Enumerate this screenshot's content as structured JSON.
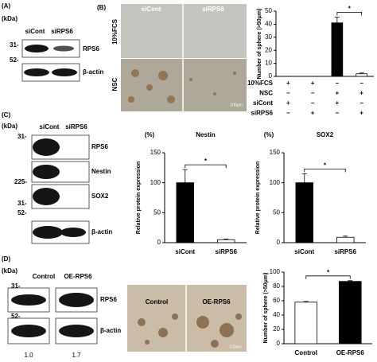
{
  "panels": {
    "A": {
      "letter": "(A)",
      "kda": "(kDa)",
      "lanes": [
        "siCont",
        "siRPS6"
      ],
      "markers": [
        "31-",
        "52-"
      ],
      "proteins": [
        "RPS6",
        "β-actin"
      ]
    },
    "B": {
      "letter": "(B)",
      "lanes": [
        "siCont",
        "siRPS6"
      ],
      "conditions": [
        "10%FCS",
        "NSC"
      ],
      "scale": "100μm"
    },
    "C": {
      "letter": "(C)",
      "kda": "(kDa)",
      "lanes": [
        "siCont",
        "siRPS6"
      ],
      "markers": [
        "31-",
        "225-",
        "31-",
        "52-"
      ],
      "proteins": [
        "RPS6",
        "Nestin",
        "SOX2",
        "β-actin"
      ]
    },
    "D": {
      "letter": "(D)",
      "kda": "(kDa)",
      "lanes": [
        "Control",
        "OE-RPS6"
      ],
      "markers": [
        "31-",
        "52-"
      ],
      "proteins": [
        "RPS6",
        "β-actin"
      ],
      "quantification": [
        "1.0",
        "1.7"
      ],
      "image_labels": [
        "Control",
        "OE-RPS6"
      ],
      "scale": "100μm"
    }
  },
  "chart_data": [
    {
      "type": "bar",
      "ylabel": "Number of sphere (>50μm)",
      "categories": [
        null,
        null,
        null,
        null
      ],
      "values": [
        0,
        0,
        41,
        2
      ],
      "errors": [
        0,
        0,
        4.5,
        0.6
      ],
      "colors": [
        "#ffffff",
        "#ffffff",
        "#000000",
        "#ffffff"
      ],
      "ylim": [
        0,
        50
      ],
      "yticks": [
        0,
        10,
        20,
        30,
        40,
        50
      ],
      "significance": "*",
      "conditions": [
        {
          "label": "10%FCS",
          "signs": [
            "+",
            "+",
            "−",
            "−"
          ]
        },
        {
          "label": "NSC",
          "signs": [
            "−",
            "−",
            "+",
            "+"
          ]
        },
        {
          "label": "siCont",
          "signs": [
            "+",
            "−",
            "+",
            "−"
          ]
        },
        {
          "label": "siRPS6",
          "signs": [
            "−",
            "+",
            "−",
            "+"
          ]
        }
      ]
    },
    {
      "type": "bar",
      "title": "Nestin",
      "unit": "(%)",
      "ylabel": "Relative protein expression",
      "categories": [
        "siCont",
        "siRPS6"
      ],
      "values": [
        100,
        5
      ],
      "errors": [
        22,
        1
      ],
      "colors": [
        "#000000",
        "#ffffff"
      ],
      "ylim": [
        0,
        150
      ],
      "yticks": [
        0,
        50,
        100,
        150
      ],
      "significance": "*"
    },
    {
      "type": "bar",
      "title": "SOX2",
      "unit": "(%)",
      "ylabel": "Relative protein expression",
      "categories": [
        "siCont",
        "siRPS6"
      ],
      "values": [
        100,
        9
      ],
      "errors": [
        15,
        2
      ],
      "colors": [
        "#000000",
        "#ffffff"
      ],
      "ylim": [
        0,
        150
      ],
      "yticks": [
        0,
        50,
        100,
        150
      ],
      "significance": "*"
    },
    {
      "type": "bar",
      "ylabel": "Number of sphere (>50μm)",
      "categories": [
        "Control",
        "OE-RPS6"
      ],
      "values": [
        58,
        87
      ],
      "errors": [
        1,
        1
      ],
      "colors": [
        "#ffffff",
        "#000000"
      ],
      "ylim": [
        0,
        100
      ],
      "yticks": [
        0,
        20,
        40,
        60,
        80,
        100
      ],
      "significance": "*"
    }
  ]
}
